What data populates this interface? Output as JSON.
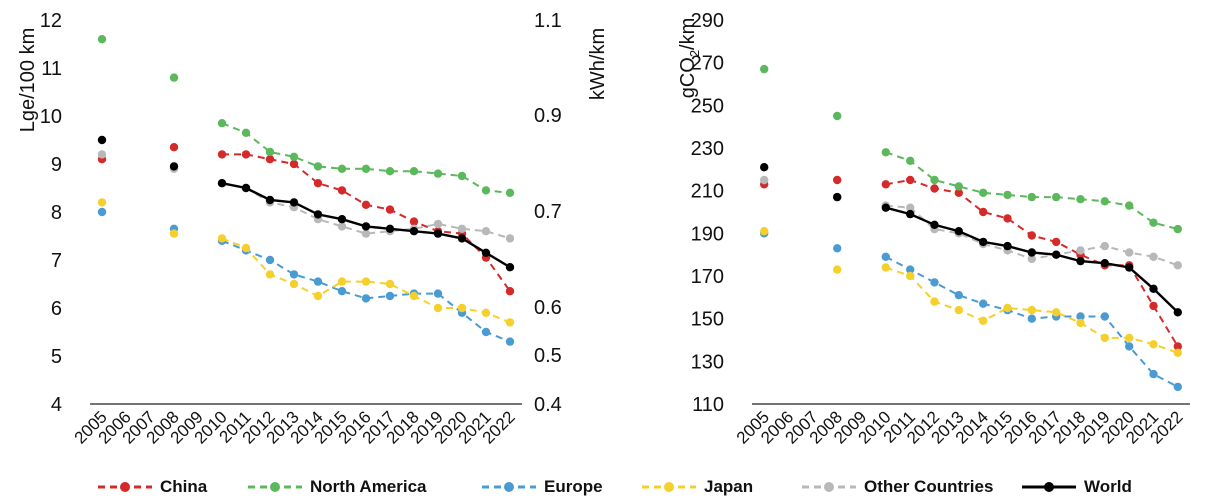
{
  "legend": {
    "china": "China",
    "north_america": "North America",
    "europe": "Europe",
    "japan": "Japan",
    "other": "Other Countries",
    "world": "World"
  },
  "colors": {
    "China": "#d42a2a",
    "North America": "#5cb85c",
    "Europe": "#4a9bd1",
    "Japan": "#f5d02c",
    "Other Countries": "#b8b8b8",
    "World": "#000000"
  },
  "chart_data": [
    {
      "type": "line",
      "xlabel": "",
      "ylabel": "Lge/100 km",
      "y2label": "kWh/km",
      "ylim": [
        4,
        12
      ],
      "y2lim": [
        0.4,
        1.1
      ],
      "yticks": [
        4,
        5,
        6,
        7,
        8,
        9,
        10,
        11,
        12
      ],
      "y2ticks": [
        "0.4",
        "0.5",
        "0.6",
        "0.7",
        "0.9",
        "1.1"
      ],
      "x_categories": [
        "2005",
        "2006",
        "2007",
        "2008",
        "2009",
        "2010",
        "2011",
        "2012",
        "2013",
        "2014",
        "2015",
        "2016",
        "2017",
        "2018",
        "2019",
        "2020",
        "2021",
        "2022"
      ],
      "series": [
        {
          "name": "China",
          "style": "dashed",
          "points": [
            [
              2005,
              9.1
            ],
            [
              2008,
              9.35
            ],
            [
              2010,
              9.2
            ],
            [
              2011,
              9.2
            ],
            [
              2012,
              9.1
            ],
            [
              2013,
              9.0
            ],
            [
              2014,
              8.6
            ],
            [
              2015,
              8.45
            ],
            [
              2016,
              8.15
            ],
            [
              2017,
              8.05
            ],
            [
              2018,
              7.8
            ],
            [
              2019,
              7.6
            ],
            [
              2020,
              7.55
            ],
            [
              2021,
              7.05
            ],
            [
              2022,
              6.35
            ]
          ]
        },
        {
          "name": "North America",
          "style": "dashed",
          "points": [
            [
              2005,
              11.6
            ],
            [
              2008,
              10.8
            ],
            [
              2010,
              9.85
            ],
            [
              2011,
              9.65
            ],
            [
              2012,
              9.25
            ],
            [
              2013,
              9.15
            ],
            [
              2014,
              8.95
            ],
            [
              2015,
              8.9
            ],
            [
              2016,
              8.9
            ],
            [
              2017,
              8.85
            ],
            [
              2018,
              8.85
            ],
            [
              2019,
              8.8
            ],
            [
              2020,
              8.75
            ],
            [
              2021,
              8.45
            ],
            [
              2022,
              8.4
            ]
          ]
        },
        {
          "name": "Europe",
          "style": "dashed",
          "points": [
            [
              2005,
              8.0
            ],
            [
              2008,
              7.65
            ],
            [
              2010,
              7.4
            ],
            [
              2011,
              7.2
            ],
            [
              2012,
              7.0
            ],
            [
              2013,
              6.7
            ],
            [
              2014,
              6.55
            ],
            [
              2015,
              6.35
            ],
            [
              2016,
              6.2
            ],
            [
              2017,
              6.25
            ],
            [
              2018,
              6.3
            ],
            [
              2019,
              6.3
            ],
            [
              2020,
              5.9
            ],
            [
              2021,
              5.5
            ],
            [
              2022,
              5.3
            ]
          ]
        },
        {
          "name": "Japan",
          "style": "dashed",
          "points": [
            [
              2005,
              8.2
            ],
            [
              2008,
              7.55
            ],
            [
              2010,
              7.45
            ],
            [
              2011,
              7.25
            ],
            [
              2012,
              6.7
            ],
            [
              2013,
              6.5
            ],
            [
              2014,
              6.25
            ],
            [
              2015,
              6.55
            ],
            [
              2016,
              6.55
            ],
            [
              2017,
              6.5
            ],
            [
              2018,
              6.25
            ],
            [
              2019,
              6.0
            ],
            [
              2020,
              6.0
            ],
            [
              2021,
              5.9
            ],
            [
              2022,
              5.7
            ]
          ]
        },
        {
          "name": "Other Countries",
          "style": "dashed",
          "points": [
            [
              2005,
              9.2
            ],
            [
              2008,
              8.9
            ],
            [
              2010,
              8.6
            ],
            [
              2011,
              8.5
            ],
            [
              2012,
              8.2
            ],
            [
              2013,
              8.1
            ],
            [
              2014,
              7.85
            ],
            [
              2015,
              7.7
            ],
            [
              2016,
              7.55
            ],
            [
              2017,
              7.6
            ],
            [
              2018,
              7.65
            ],
            [
              2019,
              7.75
            ],
            [
              2020,
              7.65
            ],
            [
              2021,
              7.6
            ],
            [
              2022,
              7.45
            ]
          ]
        },
        {
          "name": "World",
          "style": "solid",
          "points": [
            [
              2005,
              9.5
            ],
            [
              2008,
              8.95
            ],
            [
              2010,
              8.6
            ],
            [
              2011,
              8.5
            ],
            [
              2012,
              8.25
            ],
            [
              2013,
              8.2
            ],
            [
              2014,
              7.95
            ],
            [
              2015,
              7.85
            ],
            [
              2016,
              7.7
            ],
            [
              2017,
              7.65
            ],
            [
              2018,
              7.6
            ],
            [
              2019,
              7.55
            ],
            [
              2020,
              7.45
            ],
            [
              2021,
              7.15
            ],
            [
              2022,
              6.85
            ]
          ]
        }
      ]
    },
    {
      "type": "line",
      "xlabel": "",
      "ylabel_pre": "gCO",
      "ylabel_sub": "2",
      "ylabel_post": "/km",
      "ylim": [
        110,
        290
      ],
      "yticks": [
        110,
        130,
        150,
        170,
        190,
        210,
        230,
        250,
        270,
        290
      ],
      "x_categories": [
        "2005",
        "2006",
        "2007",
        "2008",
        "2009",
        "2010",
        "2011",
        "2012",
        "2013",
        "2014",
        "2015",
        "2016",
        "2017",
        "2018",
        "2019",
        "2020",
        "2021",
        "2022"
      ],
      "series": [
        {
          "name": "China",
          "style": "dashed",
          "points": [
            [
              2005,
              213
            ],
            [
              2008,
              215
            ],
            [
              2010,
              213
            ],
            [
              2011,
              215
            ],
            [
              2012,
              211
            ],
            [
              2013,
              209
            ],
            [
              2014,
              200
            ],
            [
              2015,
              197
            ],
            [
              2016,
              189
            ],
            [
              2017,
              186
            ],
            [
              2018,
              180
            ],
            [
              2019,
              175
            ],
            [
              2020,
              175
            ],
            [
              2021,
              156
            ],
            [
              2022,
              137
            ]
          ]
        },
        {
          "name": "North America",
          "style": "dashed",
          "points": [
            [
              2005,
              267
            ],
            [
              2008,
              245
            ],
            [
              2010,
              228
            ],
            [
              2011,
              224
            ],
            [
              2012,
              215
            ],
            [
              2013,
              212
            ],
            [
              2014,
              209
            ],
            [
              2015,
              208
            ],
            [
              2016,
              207
            ],
            [
              2017,
              207
            ],
            [
              2018,
              206
            ],
            [
              2019,
              205
            ],
            [
              2020,
              203
            ],
            [
              2021,
              195
            ],
            [
              2022,
              192
            ]
          ]
        },
        {
          "name": "Europe",
          "style": "dashed",
          "points": [
            [
              2005,
              190
            ],
            [
              2008,
              183
            ],
            [
              2010,
              179
            ],
            [
              2011,
              173
            ],
            [
              2012,
              167
            ],
            [
              2013,
              161
            ],
            [
              2014,
              157
            ],
            [
              2015,
              154
            ],
            [
              2016,
              150
            ],
            [
              2017,
              151
            ],
            [
              2018,
              151
            ],
            [
              2019,
              151
            ],
            [
              2020,
              137
            ],
            [
              2021,
              124
            ],
            [
              2022,
              118
            ]
          ]
        },
        {
          "name": "Japan",
          "style": "dashed",
          "points": [
            [
              2005,
              191
            ],
            [
              2008,
              173
            ],
            [
              2010,
              174
            ],
            [
              2011,
              170
            ],
            [
              2012,
              158
            ],
            [
              2013,
              154
            ],
            [
              2014,
              149
            ],
            [
              2015,
              155
            ],
            [
              2016,
              154
            ],
            [
              2017,
              153
            ],
            [
              2018,
              148
            ],
            [
              2019,
              141
            ],
            [
              2020,
              141
            ],
            [
              2021,
              138
            ],
            [
              2022,
              134
            ]
          ]
        },
        {
          "name": "Other Countries",
          "style": "dashed",
          "points": [
            [
              2005,
              215
            ],
            [
              2008,
              207
            ],
            [
              2010,
              203
            ],
            [
              2011,
              202
            ],
            [
              2012,
              192
            ],
            [
              2013,
              190
            ],
            [
              2014,
              185
            ],
            [
              2015,
              182
            ],
            [
              2016,
              178
            ],
            [
              2017,
              180
            ],
            [
              2018,
              182
            ],
            [
              2019,
              184
            ],
            [
              2020,
              181
            ],
            [
              2021,
              179
            ],
            [
              2022,
              175
            ]
          ]
        },
        {
          "name": "World",
          "style": "solid",
          "points": [
            [
              2005,
              221
            ],
            [
              2008,
              207
            ],
            [
              2010,
              202
            ],
            [
              2011,
              199
            ],
            [
              2012,
              194
            ],
            [
              2013,
              191
            ],
            [
              2014,
              186
            ],
            [
              2015,
              184
            ],
            [
              2016,
              181
            ],
            [
              2017,
              180
            ],
            [
              2018,
              177
            ],
            [
              2019,
              176
            ],
            [
              2020,
              174
            ],
            [
              2021,
              164
            ],
            [
              2022,
              153
            ]
          ]
        }
      ]
    }
  ]
}
